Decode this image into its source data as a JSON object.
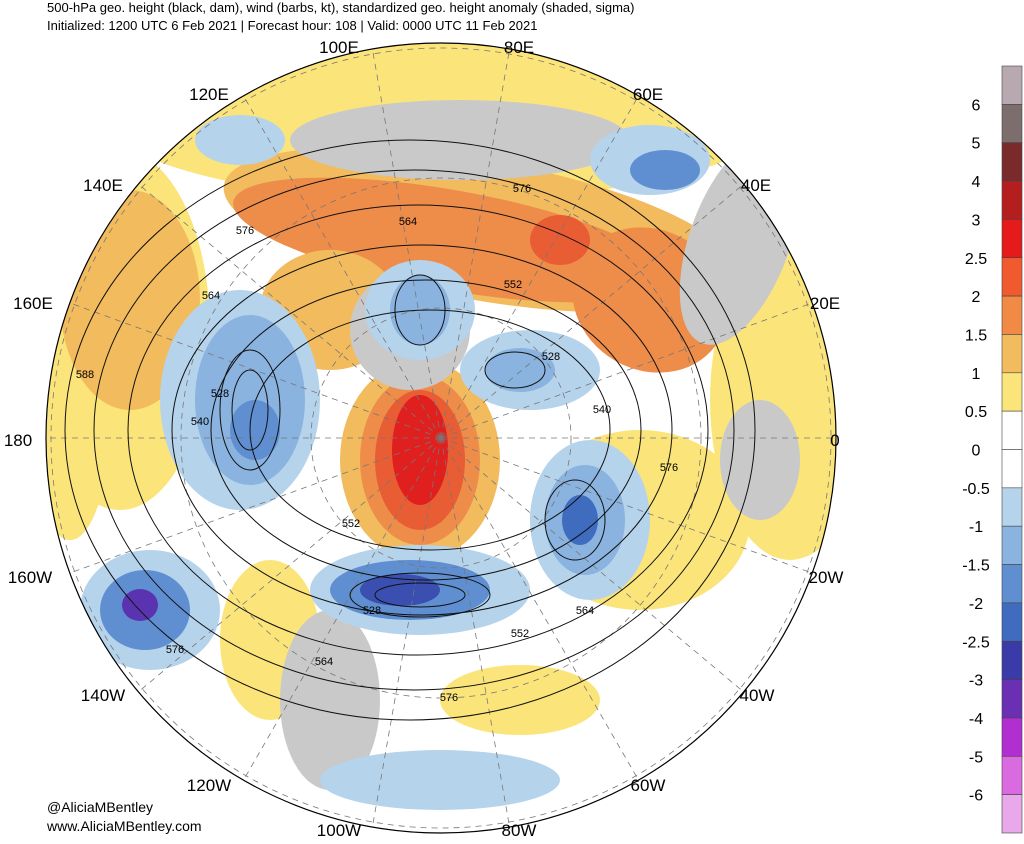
{
  "header": {
    "title": "500-hPa geo. height (black, dam), wind (barbs, kt), standardized geo. height anomaly (shaded, sigma)",
    "subtitle": "Initialized: 1200 UTC 6 Feb 2021 | Forecast hour: 108 | Valid: 0000 UTC 11 Feb 2021"
  },
  "map": {
    "longitude_labels": [
      "100E",
      "80E",
      "120E",
      "60E",
      "140E",
      "40E",
      "160E",
      "20E",
      "180",
      "0",
      "160W",
      "20W",
      "140W",
      "40W",
      "120W",
      "60W",
      "100W",
      "80W"
    ],
    "contour_labels": [
      "576",
      "564",
      "576",
      "564",
      "552",
      "528",
      "588",
      "528",
      "540",
      "540",
      "576",
      "552",
      "528",
      "564",
      "552",
      "576",
      "564",
      "576"
    ]
  },
  "colorbar": {
    "labels": [
      "6",
      "5",
      "4",
      "3",
      "2.5",
      "2",
      "1.5",
      "1",
      "0.5",
      "0",
      "-0.5",
      "-1",
      "-1.5",
      "-2",
      "-2.5",
      "-3",
      "-4",
      "-5",
      "-6"
    ]
  },
  "credits": [
    "@AliciaMBentley",
    "www.AliciaMBentley.com"
  ]
}
